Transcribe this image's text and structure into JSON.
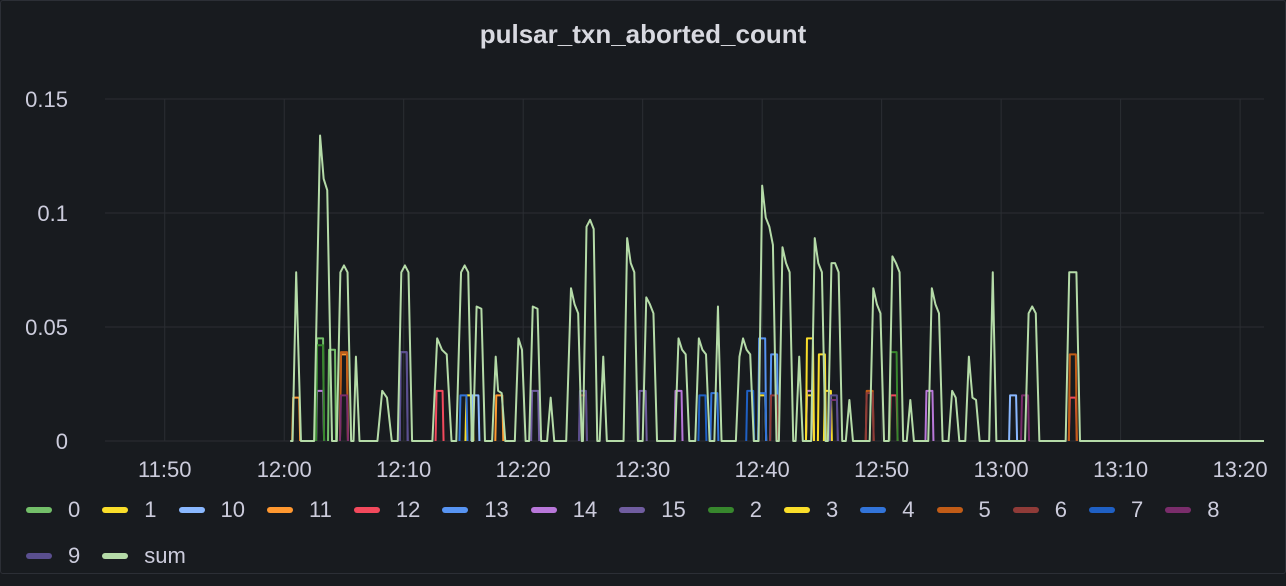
{
  "panel": {
    "title": "pulsar_txn_aborted_count"
  },
  "chart_data": {
    "type": "line",
    "title": "pulsar_txn_aborted_count",
    "xlabel": "",
    "ylabel": "",
    "ylim": [
      0,
      0.15
    ],
    "xlim": [
      "11:45",
      "13:22"
    ],
    "y_ticks": [
      0,
      0.05,
      0.1,
      0.15
    ],
    "y_tick_labels": [
      "0",
      "0.05",
      "0.1",
      "0.15"
    ],
    "x_ticks": [
      "11:50",
      "12:00",
      "12:10",
      "12:20",
      "12:30",
      "12:40",
      "12:50",
      "13:00",
      "13:10",
      "13:20"
    ],
    "grid": true,
    "legend": "bottom",
    "series": [
      {
        "name": "0",
        "color": "#73bf69",
        "points": [
          [
            "12:03",
            0.045
          ],
          [
            "12:04",
            0.04
          ]
        ]
      },
      {
        "name": "1",
        "color": "#fade2a",
        "points": [
          [
            "12:15.5",
            0.02
          ],
          [
            "12:40",
            0.02
          ],
          [
            "12:44",
            0.02
          ]
        ]
      },
      {
        "name": "10",
        "color": "#8ab8ff",
        "points": [
          [
            "12:16",
            0.02
          ],
          [
            "13:01",
            0.02
          ]
        ]
      },
      {
        "name": "11",
        "color": "#ff9830",
        "points": [
          [
            "12:01",
            0.019
          ],
          [
            "12:05",
            0.038
          ],
          [
            "12:18",
            0.02
          ]
        ]
      },
      {
        "name": "12",
        "color": "#f2495c",
        "points": [
          [
            "12:13",
            0.022
          ],
          [
            "12:51",
            0.02
          ],
          [
            "13:06",
            0.019
          ]
        ]
      },
      {
        "name": "13",
        "color": "#5794f2",
        "points": [
          [
            "12:40",
            0.045
          ],
          [
            "12:41",
            0.038
          ]
        ]
      },
      {
        "name": "14",
        "color": "#b877d9",
        "points": [
          [
            "12:03",
            0.022
          ],
          [
            "12:33",
            0.022
          ],
          [
            "12:44",
            0.022
          ],
          [
            "12:54",
            0.022
          ]
        ]
      },
      {
        "name": "15",
        "color": "#705da0",
        "points": [
          [
            "12:10",
            0.039
          ],
          [
            "12:21",
            0.022
          ],
          [
            "12:30",
            0.022
          ]
        ]
      },
      {
        "name": "2",
        "color": "#37872d",
        "points": [
          [
            "12:03",
            0.042
          ],
          [
            "12:51",
            0.039
          ]
        ]
      },
      {
        "name": "3",
        "color": "#fade2a",
        "points": [
          [
            "12:44",
            0.045
          ],
          [
            "12:45",
            0.038
          ],
          [
            "12:45.5",
            0.022
          ]
        ]
      },
      {
        "name": "4",
        "color": "#3274d9",
        "points": [
          [
            "12:15",
            0.02
          ],
          [
            "12:36",
            0.021
          ],
          [
            "12:40",
            0.021
          ]
        ]
      },
      {
        "name": "5",
        "color": "#c15c17",
        "points": [
          [
            "12:05",
            0.039
          ],
          [
            "12:49",
            0.022
          ],
          [
            "13:06",
            0.038
          ]
        ]
      },
      {
        "name": "6",
        "color": "#8f3b38",
        "points": [
          [
            "12:25",
            0.02
          ],
          [
            "12:41",
            0.02
          ],
          [
            "12:49",
            0.021
          ]
        ]
      },
      {
        "name": "7",
        "color": "#1f60c4",
        "points": [
          [
            "12:35",
            0.02
          ],
          [
            "12:39",
            0.022
          ]
        ]
      },
      {
        "name": "8",
        "color": "#7a2d6b",
        "points": [
          [
            "12:05",
            0.02
          ],
          [
            "12:46",
            0.018
          ],
          [
            "13:02",
            0.02
          ]
        ]
      },
      {
        "name": "9",
        "color": "#5a4f8f",
        "points": [
          [
            "12:10",
            0.039
          ],
          [
            "12:25",
            0.022
          ],
          [
            "12:46",
            0.02
          ]
        ]
      },
      {
        "name": "sum",
        "color": "#b5dba8",
        "points": [
          [
            "12:00.7",
            0
          ],
          [
            "12:01",
            0.074
          ],
          [
            "12:01.4",
            0
          ],
          [
            "12:02.5",
            0
          ],
          [
            "12:03",
            0.134
          ],
          [
            "12:03.3",
            0.115
          ],
          [
            "12:03.6",
            0.11
          ],
          [
            "12:04",
            0
          ],
          [
            "12:04.4",
            0
          ],
          [
            "12:04.7",
            0.074
          ],
          [
            "12:05",
            0.077
          ],
          [
            "12:05.3",
            0.074
          ],
          [
            "12:05.6",
            0
          ],
          [
            "12:05.8",
            0
          ],
          [
            "12:06",
            0.037
          ],
          [
            "12:06.3",
            0
          ],
          [
            "12:07.8",
            0
          ],
          [
            "12:08.2",
            0.022
          ],
          [
            "12:08.6",
            0.019
          ],
          [
            "12:09",
            0
          ],
          [
            "12:09.5",
            0
          ],
          [
            "12:09.8",
            0.074
          ],
          [
            "12:10.1",
            0.077
          ],
          [
            "12:10.4",
            0.074
          ],
          [
            "12:10.7",
            0
          ],
          [
            "12:12.4",
            0
          ],
          [
            "12:12.8",
            0.045
          ],
          [
            "12:13.2",
            0.04
          ],
          [
            "12:13.6",
            0.038
          ],
          [
            "12:14",
            0
          ],
          [
            "12:14.4",
            0
          ],
          [
            "12:14.8",
            0.074
          ],
          [
            "12:15.1",
            0.077
          ],
          [
            "12:15.4",
            0.074
          ],
          [
            "12:15.7",
            0
          ],
          [
            "12:15.8",
            0
          ],
          [
            "12:16.1",
            0.059
          ],
          [
            "12:16.5",
            0.058
          ],
          [
            "12:16.8",
            0
          ],
          [
            "12:17.4",
            0
          ],
          [
            "12:17.7",
            0.037
          ],
          [
            "12:17.9",
            0.022
          ],
          [
            "12:18.2",
            0.021
          ],
          [
            "12:18.5",
            0
          ],
          [
            "12:19.3",
            0
          ],
          [
            "12:19.6",
            0.045
          ],
          [
            "12:19.9",
            0.04
          ],
          [
            "12:20.2",
            0
          ],
          [
            "12:20.5",
            0
          ],
          [
            "12:20.8",
            0.059
          ],
          [
            "12:21.2",
            0.058
          ],
          [
            "12:21.5",
            0
          ],
          [
            "12:22",
            0
          ],
          [
            "12:22.3",
            0.019
          ],
          [
            "12:22.6",
            0
          ],
          [
            "12:23.6",
            0
          ],
          [
            "12:24",
            0.067
          ],
          [
            "12:24.3",
            0.06
          ],
          [
            "12:24.6",
            0.056
          ],
          [
            "12:24.9",
            0
          ],
          [
            "12:25",
            0
          ],
          [
            "12:25.3",
            0.094
          ],
          [
            "12:25.6",
            0.097
          ],
          [
            "12:25.9",
            0.093
          ],
          [
            "12:26.2",
            0
          ],
          [
            "12:26.4",
            0
          ],
          [
            "12:26.7",
            0.037
          ],
          [
            "12:27",
            0
          ],
          [
            "12:28.4",
            0
          ],
          [
            "12:28.7",
            0.089
          ],
          [
            "12:29",
            0.078
          ],
          [
            "12:29.3",
            0.074
          ],
          [
            "12:29.6",
            0
          ],
          [
            "12:30",
            0
          ],
          [
            "12:30.3",
            0.063
          ],
          [
            "12:30.6",
            0.06
          ],
          [
            "12:30.9",
            0.056
          ],
          [
            "12:31.2",
            0
          ],
          [
            "12:32.7",
            0
          ],
          [
            "12:33",
            0.045
          ],
          [
            "12:33.3",
            0.04
          ],
          [
            "12:33.6",
            0.038
          ],
          [
            "12:33.9",
            0
          ],
          [
            "12:34.4",
            0
          ],
          [
            "12:34.7",
            0.045
          ],
          [
            "12:35",
            0.04
          ],
          [
            "12:35.3",
            0.038
          ],
          [
            "12:35.6",
            0
          ],
          [
            "12:36",
            0
          ],
          [
            "12:36.3",
            0.059
          ],
          [
            "12:36.6",
            0
          ],
          [
            "12:37.8",
            0
          ],
          [
            "12:38.1",
            0.037
          ],
          [
            "12:38.4",
            0.045
          ],
          [
            "12:38.7",
            0.04
          ],
          [
            "12:39",
            0.038
          ],
          [
            "12:39.3",
            0
          ],
          [
            "12:39.7",
            0
          ],
          [
            "12:40",
            0.112
          ],
          [
            "12:40.3",
            0.098
          ],
          [
            "12:40.6",
            0.094
          ],
          [
            "12:40.9",
            0.086
          ],
          [
            "12:41.2",
            0
          ],
          [
            "12:41.4",
            0
          ],
          [
            "12:41.7",
            0.085
          ],
          [
            "12:42",
            0.078
          ],
          [
            "12:42.3",
            0.074
          ],
          [
            "12:42.6",
            0
          ],
          [
            "12:42.8",
            0
          ],
          [
            "12:43.1",
            0.037
          ],
          [
            "12:43.4",
            0
          ],
          [
            "12:44.1",
            0
          ],
          [
            "12:44.4",
            0.089
          ],
          [
            "12:44.7",
            0.078
          ],
          [
            "12:45",
            0.074
          ],
          [
            "12:45.3",
            0
          ],
          [
            "12:45.5",
            0
          ],
          [
            "12:45.8",
            0.078
          ],
          [
            "12:46.1",
            0.078
          ],
          [
            "12:46.4",
            0.074
          ],
          [
            "12:46.7",
            0
          ],
          [
            "12:47",
            0
          ],
          [
            "12:47.3",
            0.018
          ],
          [
            "12:47.6",
            0
          ],
          [
            "12:49",
            0
          ],
          [
            "12:49.3",
            0.067
          ],
          [
            "12:49.6",
            0.06
          ],
          [
            "12:49.9",
            0.056
          ],
          [
            "12:50.2",
            0
          ],
          [
            "12:50.6",
            0
          ],
          [
            "12:50.9",
            0.081
          ],
          [
            "12:51.2",
            0.078
          ],
          [
            "12:51.5",
            0.074
          ],
          [
            "12:51.8",
            0
          ],
          [
            "12:52.1",
            0
          ],
          [
            "12:52.4",
            0.018
          ],
          [
            "12:52.7",
            0
          ],
          [
            "12:53.9",
            0
          ],
          [
            "12:54.2",
            0.067
          ],
          [
            "12:54.5",
            0.06
          ],
          [
            "12:54.8",
            0.056
          ],
          [
            "12:55.1",
            0
          ],
          [
            "12:55.6",
            0
          ],
          [
            "12:55.9",
            0.022
          ],
          [
            "12:56.2",
            0.019
          ],
          [
            "12:56.5",
            0
          ],
          [
            "12:57",
            0
          ],
          [
            "12:57.3",
            0.037
          ],
          [
            "12:57.6",
            0.019
          ],
          [
            "12:57.9",
            0.018
          ],
          [
            "12:58.2",
            0
          ],
          [
            "12:59",
            0
          ],
          [
            "12:59.3",
            0.074
          ],
          [
            "12:59.6",
            0
          ],
          [
            "13:02",
            0
          ],
          [
            "13:02.3",
            0.056
          ],
          [
            "13:02.6",
            0.059
          ],
          [
            "13:02.9",
            0.056
          ],
          [
            "13:03.2",
            0
          ],
          [
            "13:05.4",
            0
          ],
          [
            "13:05.7",
            0.074
          ],
          [
            "13:06",
            0.074
          ],
          [
            "13:06.3",
            0.074
          ],
          [
            "13:06.6",
            0
          ]
        ]
      }
    ]
  }
}
